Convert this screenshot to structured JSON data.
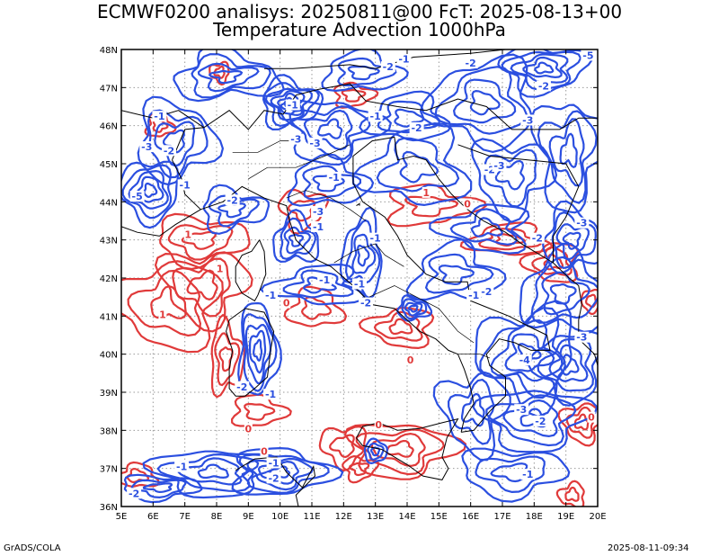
{
  "title_line1": "ECMWF0200 analisys: 20250811@00 FcT: 2025-08-13+00",
  "title_line2": "Temperature Advection 1000hPa",
  "credit_left": "GrADS/COLA",
  "credit_right": "2025-08-11-09:34",
  "map": {
    "lon_range": [
      5,
      20
    ],
    "lat_range": [
      36,
      48
    ],
    "lon_labels": [
      "5E",
      "6E",
      "7E",
      "8E",
      "9E",
      "10E",
      "11E",
      "12E",
      "13E",
      "14E",
      "15E",
      "16E",
      "17E",
      "18E",
      "19E",
      "20E"
    ],
    "lat_labels": [
      "36N",
      "37N",
      "38N",
      "39N",
      "40N",
      "41N",
      "42N",
      "43N",
      "44N",
      "45N",
      "46N",
      "47N",
      "48N"
    ],
    "grid": true,
    "positive_color": "#e03a3a",
    "negative_color": "#2b4fe0",
    "coastline_color": "#000000"
  },
  "contour_labels": [
    {
      "text": "-1",
      "lon": 6.2,
      "lat": 46.2,
      "sign": "neg"
    },
    {
      "text": "-2",
      "lon": 6.5,
      "lat": 45.3,
      "sign": "neg"
    },
    {
      "text": "-3",
      "lon": 5.8,
      "lat": 45.4,
      "sign": "neg"
    },
    {
      "text": "-5",
      "lon": 5.5,
      "lat": 44.1,
      "sign": "neg"
    },
    {
      "text": "-1",
      "lon": 7.0,
      "lat": 44.4,
      "sign": "neg"
    },
    {
      "text": "-3",
      "lon": 10.5,
      "lat": 45.6,
      "sign": "neg"
    },
    {
      "text": "-3",
      "lon": 11.1,
      "lat": 45.5,
      "sign": "neg"
    },
    {
      "text": "-1",
      "lon": 10.4,
      "lat": 46.5,
      "sign": "neg"
    },
    {
      "text": "-2",
      "lon": 13.4,
      "lat": 47.5,
      "sign": "neg"
    },
    {
      "text": "-1",
      "lon": 13.9,
      "lat": 47.7,
      "sign": "neg"
    },
    {
      "text": "-2",
      "lon": 16.0,
      "lat": 47.6,
      "sign": "neg"
    },
    {
      "text": "-5",
      "lon": 19.7,
      "lat": 47.8,
      "sign": "neg"
    },
    {
      "text": "-2",
      "lon": 18.3,
      "lat": 47.0,
      "sign": "neg"
    },
    {
      "text": "-3",
      "lon": 17.8,
      "lat": 46.1,
      "sign": "neg"
    },
    {
      "text": "-2",
      "lon": 14.3,
      "lat": 45.9,
      "sign": "neg"
    },
    {
      "text": "-1",
      "lon": 13.0,
      "lat": 46.2,
      "sign": "neg"
    },
    {
      "text": "-1",
      "lon": 11.7,
      "lat": 44.6,
      "sign": "neg"
    },
    {
      "text": "-2",
      "lon": 8.5,
      "lat": 44.0,
      "sign": "neg"
    },
    {
      "text": "-3",
      "lon": 11.2,
      "lat": 43.7,
      "sign": "neg"
    },
    {
      "text": "-2",
      "lon": 16.6,
      "lat": 44.8,
      "sign": "neg"
    },
    {
      "text": "-3",
      "lon": 16.9,
      "lat": 44.9,
      "sign": "neg"
    },
    {
      "text": "-3",
      "lon": 19.5,
      "lat": 43.4,
      "sign": "neg"
    },
    {
      "text": "-2",
      "lon": 18.1,
      "lat": 43.0,
      "sign": "neg"
    },
    {
      "text": "-2",
      "lon": 16.5,
      "lat": 41.6,
      "sign": "neg"
    },
    {
      "text": "-1",
      "lon": 16.1,
      "lat": 41.5,
      "sign": "neg"
    },
    {
      "text": "-3",
      "lon": 19.5,
      "lat": 40.4,
      "sign": "neg"
    },
    {
      "text": "-4",
      "lon": 17.7,
      "lat": 39.8,
      "sign": "neg"
    },
    {
      "text": "-3",
      "lon": 17.6,
      "lat": 38.5,
      "sign": "neg"
    },
    {
      "text": "-2",
      "lon": 18.2,
      "lat": 38.2,
      "sign": "neg"
    },
    {
      "text": "-1",
      "lon": 17.8,
      "lat": 36.8,
      "sign": "neg"
    },
    {
      "text": "-2",
      "lon": 8.8,
      "lat": 39.1,
      "sign": "neg"
    },
    {
      "text": "-1",
      "lon": 9.7,
      "lat": 38.9,
      "sign": "neg"
    },
    {
      "text": "-1",
      "lon": 11.4,
      "lat": 41.9,
      "sign": "neg"
    },
    {
      "text": "-1",
      "lon": 12.5,
      "lat": 41.8,
      "sign": "neg"
    },
    {
      "text": "-2",
      "lon": 12.7,
      "lat": 41.3,
      "sign": "neg"
    },
    {
      "text": "-1",
      "lon": 13.0,
      "lat": 43.0,
      "sign": "neg"
    },
    {
      "text": "-1",
      "lon": 11.2,
      "lat": 43.3,
      "sign": "neg"
    },
    {
      "text": "-1",
      "lon": 9.7,
      "lat": 41.5,
      "sign": "neg"
    },
    {
      "text": "-1",
      "lon": 6.9,
      "lat": 37.0,
      "sign": "neg"
    },
    {
      "text": "-1",
      "lon": 9.8,
      "lat": 37.1,
      "sign": "neg"
    },
    {
      "text": "-2",
      "lon": 9.8,
      "lat": 36.7,
      "sign": "neg"
    },
    {
      "text": "-2",
      "lon": 5.4,
      "lat": 36.3,
      "sign": "neg"
    },
    {
      "text": "1",
      "lon": 8.1,
      "lat": 42.2,
      "sign": "pos"
    },
    {
      "text": "1",
      "lon": 6.3,
      "lat": 41.0,
      "sign": "pos"
    },
    {
      "text": "1",
      "lon": 7.1,
      "lat": 43.1,
      "sign": "pos"
    },
    {
      "text": "0",
      "lon": 10.2,
      "lat": 41.3,
      "sign": "pos"
    },
    {
      "text": "0",
      "lon": 9.5,
      "lat": 37.4,
      "sign": "pos"
    },
    {
      "text": "0",
      "lon": 9.0,
      "lat": 38.0,
      "sign": "pos"
    },
    {
      "text": "0",
      "lon": 13.1,
      "lat": 38.1,
      "sign": "pos"
    },
    {
      "text": "0",
      "lon": 14.1,
      "lat": 39.8,
      "sign": "pos"
    },
    {
      "text": "0",
      "lon": 19.8,
      "lat": 38.3,
      "sign": "pos"
    },
    {
      "text": "1",
      "lon": 14.6,
      "lat": 44.2,
      "sign": "pos"
    },
    {
      "text": "0",
      "lon": 15.9,
      "lat": 43.9,
      "sign": "pos"
    }
  ]
}
